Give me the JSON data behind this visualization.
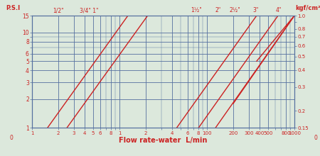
{
  "xlabel": "Flow rate-water  L/min",
  "ylabel_left": "P.S.I",
  "ylabel_right": "kgf/cm²",
  "bg_color": "#dce8dc",
  "grid_color": "#5570a0",
  "line_color": "#cc2222",
  "text_color": "#cc2222",
  "xmin": 1,
  "xmax": 1000,
  "ymin": 1.0,
  "ymax": 15.0,
  "y2min": 0.15,
  "y2max": 1.0,
  "psi_ticks": [
    1,
    2,
    3,
    4,
    5,
    6,
    8,
    10,
    15
  ],
  "psi_tick_labels": [
    "1",
    "2",
    "3",
    "4",
    "5",
    "6",
    "8",
    "10",
    "15"
  ],
  "kgf_ticks": [
    0.15,
    0.2,
    0.3,
    0.4,
    0.5,
    0.6,
    0.7,
    0.8,
    1.0
  ],
  "kgf_tick_labels": [
    "0.15",
    "0.2",
    "0.3",
    "0.4",
    "0.5",
    "0.6",
    "0.7",
    "0.8",
    "1.0"
  ],
  "x_ticks": [
    1,
    2,
    3,
    4,
    5,
    6,
    8,
    10,
    20,
    40,
    60,
    80,
    100,
    200,
    300,
    400,
    500,
    800,
    1000
  ],
  "x_tick_labels": [
    "1",
    "2",
    "3",
    "4",
    "5",
    "6",
    "8",
    "1",
    "2",
    "4",
    "6",
    "8",
    "100",
    "200",
    "300",
    "400",
    "500",
    "800",
    "1000"
  ],
  "lines": [
    [
      1.5,
      12.5,
      1.0,
      15.0
    ],
    [
      2.5,
      21.0,
      1.0,
      15.0
    ],
    [
      45,
      370,
      1.0,
      15.0
    ],
    [
      80,
      650,
      1.0,
      15.0
    ],
    [
      125,
      1000,
      1.0,
      15.0
    ],
    [
      200,
      1000,
      1.8,
      15.0
    ],
    [
      370,
      1000,
      5.0,
      15.0
    ]
  ],
  "valve_labels": [
    "1/2\"",
    "3/4\" 1\"",
    "1½\"",
    "2\"",
    "2½\"",
    "3\"",
    "4\""
  ],
  "valve_x": [
    2.0,
    4.5,
    75,
    135,
    210,
    360,
    660
  ]
}
